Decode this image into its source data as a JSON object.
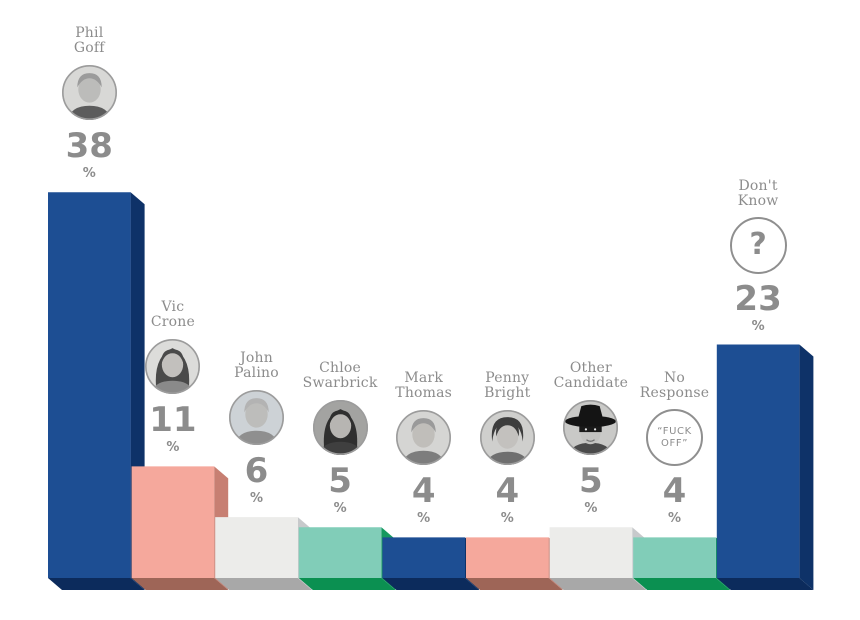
{
  "page": {
    "background": "#ffffff",
    "text_color": "#8c8c8c"
  },
  "chart_data": {
    "type": "bar",
    "title": "",
    "xlabel": "",
    "ylabel": "",
    "unit": "%",
    "percent_sign": "%",
    "ylim": [
      0,
      40
    ],
    "grid": false,
    "legend": false,
    "categories": [
      "Phil Goff",
      "Vic Crone",
      "John Palino",
      "Chloe Swarbrick",
      "Mark Thomas",
      "Penny Bright",
      "Other Candidate",
      "No Response",
      "Don't Know"
    ],
    "values": [
      38,
      11,
      6,
      5,
      4,
      4,
      5,
      4,
      23
    ],
    "palette": {
      "blue": {
        "front": "#1d4e93",
        "side": "#0e3268",
        "bottom": "#0c2b5c"
      },
      "salmon": {
        "front": "#f5a89c",
        "side": "#c77f72",
        "bottom": "#9e6557"
      },
      "gray": {
        "front": "#ececea",
        "side": "#c7c9cb",
        "bottom": "#a8a8a8"
      },
      "teal": {
        "front": "#81cdb8",
        "side": "#15995f",
        "bottom": "#0b9051"
      }
    },
    "candidates": [
      {
        "slug": "phil-goff",
        "name": "Phil Goff",
        "name_lines": [
          "Phil",
          "Goff"
        ],
        "value": 38,
        "color": "blue",
        "badge": {
          "kind": "photo",
          "label": "Phil Goff photo",
          "variant": "male"
        }
      },
      {
        "slug": "vic-crone",
        "name": "Vic Crone",
        "name_lines": [
          "Vic",
          "Crone"
        ],
        "value": 11,
        "color": "salmon",
        "badge": {
          "kind": "photo",
          "label": "Vic Crone photo",
          "variant": "female"
        }
      },
      {
        "slug": "john-palino",
        "name": "John Palino",
        "name_lines": [
          "John",
          "Palino"
        ],
        "value": 6,
        "color": "gray",
        "badge": {
          "kind": "photo",
          "label": "John Palino photo",
          "variant": "male"
        }
      },
      {
        "slug": "chloe-swarbrick",
        "name": "Chloe Swarbrick",
        "name_lines": [
          "Chloe",
          "Swarbrick"
        ],
        "value": 5,
        "color": "teal",
        "badge": {
          "kind": "photo",
          "label": "Chloe Swarbrick photo",
          "variant": "female"
        }
      },
      {
        "slug": "mark-thomas",
        "name": "Mark Thomas",
        "name_lines": [
          "Mark",
          "Thomas"
        ],
        "value": 4,
        "color": "blue",
        "badge": {
          "kind": "photo",
          "label": "Mark Thomas photo",
          "variant": "male"
        }
      },
      {
        "slug": "penny-bright",
        "name": "Penny Bright",
        "name_lines": [
          "Penny",
          "Bright"
        ],
        "value": 4,
        "color": "salmon",
        "badge": {
          "kind": "photo",
          "label": "Penny Bright photo",
          "variant": "female-short"
        }
      },
      {
        "slug": "other-candidate",
        "name": "Other Candidate",
        "name_lines": [
          "Other",
          "Candidate"
        ],
        "value": 5,
        "color": "gray",
        "badge": {
          "kind": "photo",
          "label": "Zorro photo",
          "variant": "zorro"
        }
      },
      {
        "slug": "no-response",
        "name": "No Response",
        "name_lines": [
          "No",
          "Response"
        ],
        "value": 4,
        "color": "teal",
        "badge": {
          "kind": "text",
          "lines": [
            "“FUCK",
            "OFF”"
          ]
        }
      },
      {
        "slug": "dont-know",
        "name": "Don't Know",
        "name_lines": [
          "Don't",
          "Know"
        ],
        "value": 23,
        "color": "blue",
        "badge": {
          "kind": "question",
          "symbol": "?"
        }
      }
    ]
  }
}
